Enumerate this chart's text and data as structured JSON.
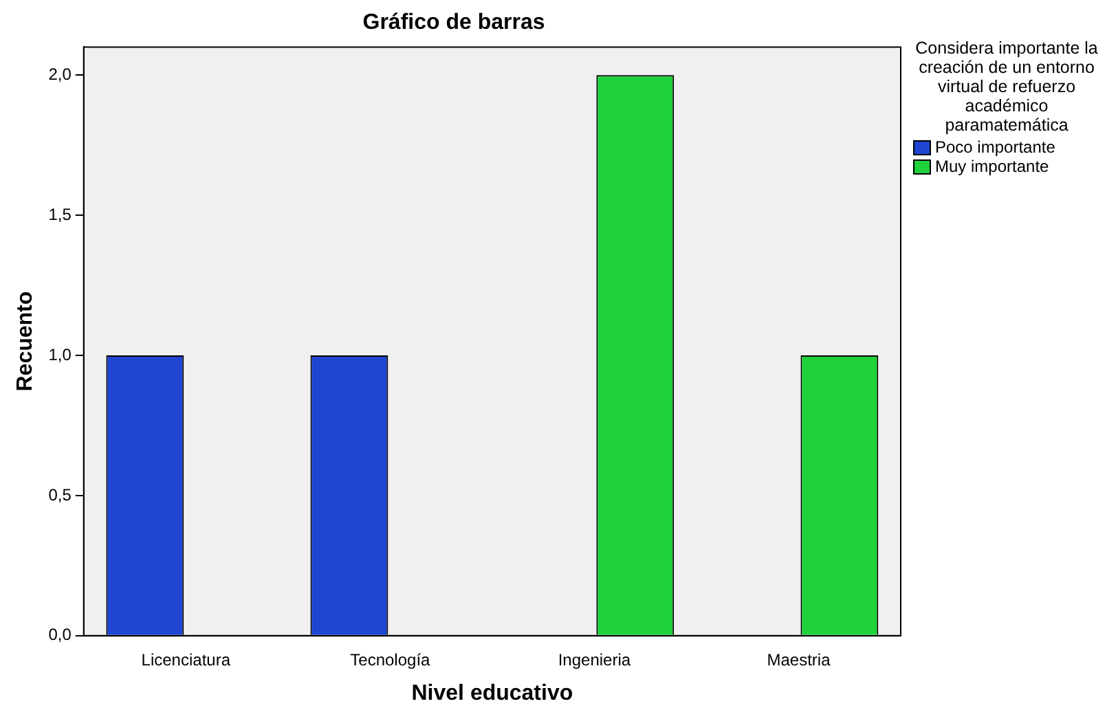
{
  "chart_data": {
    "type": "bar",
    "title": "Gráfico de barras",
    "xlabel": "Nivel educativo",
    "ylabel": "Recuento",
    "legend_title": "Considera importante la creación de un entorno virtual de refuerzo académico paramatemática",
    "categories": [
      "Licenciatura",
      "Tecnología",
      "Ingenieria",
      "Maestria"
    ],
    "series": [
      {
        "name": "Poco importante",
        "color": "#1f45d2",
        "values": [
          1,
          1,
          null,
          null
        ]
      },
      {
        "name": "Muy importante",
        "color": "#1fd23c",
        "values": [
          null,
          null,
          2,
          1
        ]
      }
    ],
    "ylim": [
      0,
      2.1
    ],
    "yticks": [
      {
        "value": 0,
        "label": "0,0"
      },
      {
        "value": 0.5,
        "label": "0,5"
      },
      {
        "value": 1,
        "label": "1,0"
      },
      {
        "value": 1.5,
        "label": "1,5"
      },
      {
        "value": 2,
        "label": "2,0"
      }
    ],
    "grid": false,
    "legend": "right"
  }
}
